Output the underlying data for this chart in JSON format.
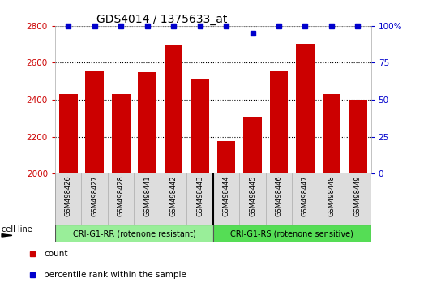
{
  "title": "GDS4014 / 1375633_at",
  "categories": [
    "GSM498426",
    "GSM498427",
    "GSM498428",
    "GSM498441",
    "GSM498442",
    "GSM498443",
    "GSM498444",
    "GSM498445",
    "GSM498446",
    "GSM498447",
    "GSM498448",
    "GSM498449"
  ],
  "bar_values": [
    2430,
    2560,
    2430,
    2550,
    2700,
    2510,
    2175,
    2310,
    2555,
    2705,
    2430,
    2400
  ],
  "percentile_values": [
    100,
    100,
    100,
    100,
    100,
    100,
    100,
    95,
    100,
    100,
    100,
    100
  ],
  "bar_color": "#cc0000",
  "percentile_color": "#0000cc",
  "ylim_left": [
    2000,
    2800
  ],
  "ylim_right": [
    0,
    100
  ],
  "yticks_left": [
    2000,
    2200,
    2400,
    2600,
    2800
  ],
  "yticks_right": [
    0,
    25,
    50,
    75,
    100
  ],
  "grid_values": [
    2200,
    2400,
    2600
  ],
  "grid_color": "#000000",
  "bg_color": "#ffffff",
  "group1_label": "CRI-G1-RR (rotenone resistant)",
  "group2_label": "CRI-G1-RS (rotenone sensitive)",
  "group1_color": "#99ee99",
  "group2_color": "#55dd55",
  "group1_count": 6,
  "group2_count": 6,
  "cell_line_label": "cell line",
  "legend_count_label": "count",
  "legend_percentile_label": "percentile rank within the sample",
  "left_tick_color": "#cc0000",
  "right_tick_color": "#0000cc",
  "title_fontsize": 10,
  "tick_fontsize": 7.5,
  "bar_width": 0.7,
  "bar_bottom": 2000
}
